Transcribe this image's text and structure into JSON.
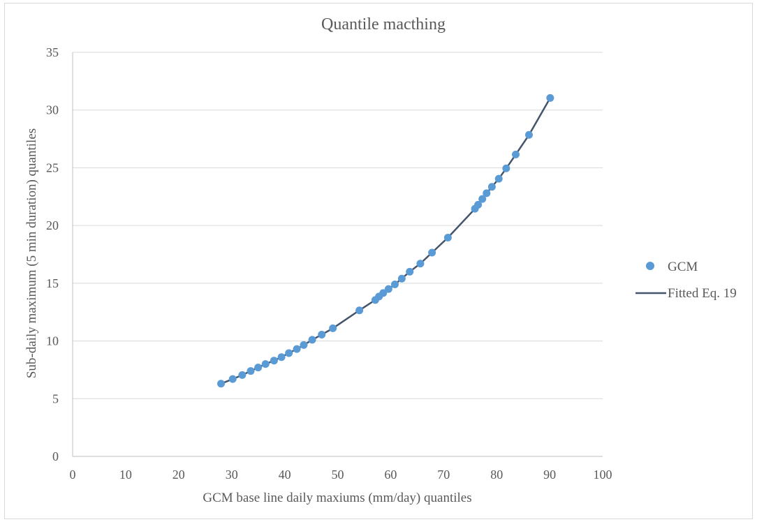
{
  "chart_data": {
    "type": "scatter",
    "title": "Quantile macthing",
    "xlabel": "GCM base line daily maxiums (mm/day) quantiles",
    "ylabel": "Sub-daily maximum (5 min duration) quantiles",
    "xlim": [
      0,
      100
    ],
    "ylim": [
      0,
      35
    ],
    "x_ticks": [
      "0",
      "10",
      "20",
      "30",
      "40",
      "50",
      "60",
      "70",
      "80",
      "90",
      "100"
    ],
    "y_ticks": [
      "0",
      "5",
      "10",
      "15",
      "20",
      "25",
      "30",
      "35"
    ],
    "grid": "horizontal",
    "legend_position": "right",
    "series": [
      {
        "name": "GCM",
        "kind": "markers",
        "color": "#5b9bd5",
        "points": [
          [
            28.0,
            6.3
          ],
          [
            30.2,
            6.7
          ],
          [
            32.0,
            7.05
          ],
          [
            33.6,
            7.4
          ],
          [
            35.0,
            7.7
          ],
          [
            36.4,
            8.0
          ],
          [
            38.0,
            8.3
          ],
          [
            39.4,
            8.6
          ],
          [
            40.8,
            8.95
          ],
          [
            42.3,
            9.3
          ],
          [
            43.6,
            9.65
          ],
          [
            45.2,
            10.1
          ],
          [
            47.0,
            10.55
          ],
          [
            49.1,
            11.1
          ],
          [
            54.1,
            12.65
          ],
          [
            57.1,
            13.55
          ],
          [
            57.8,
            13.85
          ],
          [
            58.6,
            14.15
          ],
          [
            59.6,
            14.5
          ],
          [
            60.8,
            14.9
          ],
          [
            62.1,
            15.4
          ],
          [
            63.6,
            16.0
          ],
          [
            65.6,
            16.7
          ],
          [
            67.8,
            17.65
          ],
          [
            70.8,
            18.95
          ],
          [
            75.9,
            21.45
          ],
          [
            76.5,
            21.8
          ],
          [
            77.3,
            22.3
          ],
          [
            78.1,
            22.8
          ],
          [
            79.1,
            23.35
          ],
          [
            80.4,
            24.05
          ],
          [
            81.8,
            24.95
          ],
          [
            83.6,
            26.15
          ],
          [
            86.1,
            27.85
          ],
          [
            90.1,
            31.05
          ]
        ]
      },
      {
        "name": "Fitted Eq. 19",
        "kind": "line",
        "color": "#44546a"
      }
    ]
  }
}
